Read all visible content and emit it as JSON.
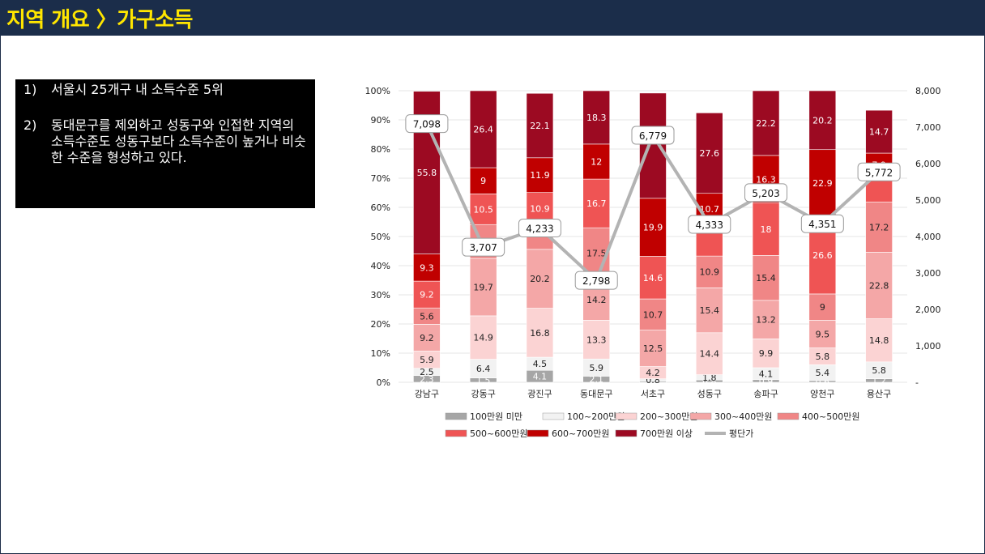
{
  "header": {
    "title": "지역 개요 〉가구소득"
  },
  "notes": [
    {
      "num": "1)",
      "text": "서울시 25개구 내 소득수준 5위"
    },
    {
      "num": "2)",
      "text": "동대문구를 제외하고 성동구와 인접한 지역의 소득수준도 성동구보다 소득수준이 높거나 비슷한 수준을 형성하고 있다."
    }
  ],
  "chart_data": {
    "type": "bar",
    "stacked": true,
    "categories": [
      "강남구",
      "강동구",
      "광진구",
      "동대문구",
      "서초구",
      "성동구",
      "송파구",
      "양천구",
      "용산구"
    ],
    "left_axis": {
      "ticks": [
        "0%",
        "10%",
        "20%",
        "30%",
        "40%",
        "50%",
        "60%",
        "70%",
        "80%",
        "90%",
        "100%"
      ],
      "ylim": [
        0,
        100
      ]
    },
    "right_axis": {
      "ticks": [
        "-",
        "1,000",
        "2,000",
        "3,000",
        "4,000",
        "5,000",
        "6,000",
        "7,000",
        "8,000"
      ],
      "ylim": [
        0,
        8000
      ]
    },
    "series": [
      {
        "name": "100만원 미만",
        "color": "#a6a6a6",
        "values": [
          2.3,
          1.5,
          4.1,
          2.1,
          0.4,
          0.8,
          0.9,
          0.6,
          1.2
        ]
      },
      {
        "name": "100~200만원",
        "color": "#f2f2f2",
        "values": [
          2.5,
          6.4,
          4.5,
          5.9,
          0.8,
          1.8,
          4.1,
          5.4,
          5.8
        ]
      },
      {
        "name": "200~300만원",
        "color": "#fbd3d3",
        "values": [
          5.9,
          14.9,
          16.8,
          13.3,
          4.2,
          14.4,
          9.9,
          5.8,
          14.8
        ]
      },
      {
        "name": "300~400만원",
        "color": "#f4a7a7",
        "values": [
          9.2,
          19.7,
          20.2,
          14.2,
          12.5,
          15.4,
          13.2,
          9.5,
          22.8
        ]
      },
      {
        "name": "400~500만원",
        "color": "#f08686",
        "values": [
          5.6,
          11.6,
          8.6,
          17.5,
          10.7,
          10.9,
          15.4,
          9,
          17.2
        ]
      },
      {
        "name": "500~600만원",
        "color": "#ef5454",
        "values": [
          9.2,
          10.5,
          10.9,
          16.7,
          14.6,
          10.8,
          18,
          26.6,
          8.9
        ]
      },
      {
        "name": "600~700만원",
        "color": "#c00000",
        "values": [
          9.3,
          9,
          11.9,
          12,
          19.9,
          10.7,
          16.3,
          22.9,
          7.9
        ]
      },
      {
        "name": "700만원 이상",
        "color": "#9c0a22",
        "values": [
          55.8,
          26.4,
          22.1,
          18.3,
          36.1,
          27.6,
          22.2,
          20.2,
          14.7
        ]
      }
    ],
    "segment_labels": [
      [
        "2.3",
        "2.5",
        "5.9",
        "9.2",
        "5.6",
        "9.2",
        "9.3",
        "55.8"
      ],
      [
        "1.5",
        "6.4",
        "14.9",
        "19.7",
        "",
        "10.5",
        "9",
        "26.4"
      ],
      [
        "4.1",
        "4.5",
        "16.8",
        "20.2",
        "",
        "10.9",
        "11.9",
        "22.1"
      ],
      [
        "2.1",
        "5.9",
        "13.3",
        "14.2",
        "17.5",
        "16.7",
        "12",
        "18.3"
      ],
      [
        "0.4",
        "0.8",
        "4.2",
        "12.5",
        "10.7",
        "14.6",
        "19.9",
        ""
      ],
      [
        "0.8",
        "1.8",
        "14.4",
        "15.4",
        "10.9",
        "",
        "10.7",
        "27.6"
      ],
      [
        "0.9",
        "4.1",
        "9.9",
        "13.2",
        "15.4",
        "18",
        "16.3",
        "22.2"
      ],
      [
        "0.6",
        "5.4",
        "5.8",
        "9.5",
        "9",
        "26.6",
        "22.9",
        "20.2"
      ],
      [
        "1.2",
        "5.8",
        "14.8",
        "22.8",
        "17.2",
        "",
        "7.9",
        "14.7"
      ]
    ],
    "line": {
      "name": "평단가",
      "color": "#b3b3b3",
      "values": [
        7098,
        3707,
        4233,
        2798,
        6779,
        4333,
        5203,
        4351,
        5772
      ],
      "labels": [
        "7,098",
        "3,707",
        "4,233",
        "2,798",
        "6,779",
        "4,333",
        "5,203",
        "4,351",
        "5,772"
      ]
    },
    "legend": {
      "position": "bottom"
    }
  }
}
